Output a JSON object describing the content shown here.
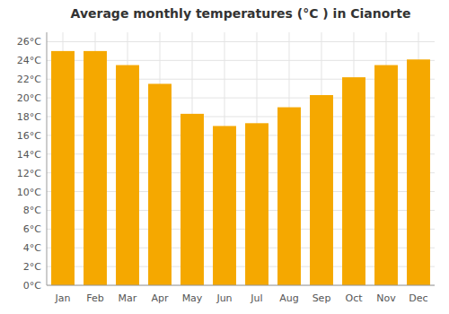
{
  "chart_data": {
    "type": "bar",
    "title": "Average monthly temperatures (°C ) in Cianorte",
    "categories": [
      "Jan",
      "Feb",
      "Mar",
      "Apr",
      "May",
      "Jun",
      "Jul",
      "Aug",
      "Sep",
      "Oct",
      "Nov",
      "Dec"
    ],
    "values": [
      25.0,
      25.0,
      23.5,
      21.5,
      18.3,
      17.0,
      17.3,
      19.0,
      20.3,
      22.2,
      23.5,
      24.1
    ],
    "color": "#F5A800",
    "ylim": [
      0,
      27
    ],
    "yticks": [
      {
        "value": 0,
        "label": "0°C"
      },
      {
        "value": 2,
        "label": "2°C"
      },
      {
        "value": 4,
        "label": "4°C"
      },
      {
        "value": 6,
        "label": "6°C"
      },
      {
        "value": 8,
        "label": "8°C"
      },
      {
        "value": 10,
        "label": "10°C"
      },
      {
        "value": 12,
        "label": "12°C"
      },
      {
        "value": 14,
        "label": "14°C"
      },
      {
        "value": 16,
        "label": "16°C"
      },
      {
        "value": 18,
        "label": "18°C"
      },
      {
        "value": 20,
        "label": "20°C"
      },
      {
        "value": 22,
        "label": "22°C"
      },
      {
        "value": 24,
        "label": "24°C"
      },
      {
        "value": 26,
        "label": "26°C"
      }
    ],
    "grid": true
  }
}
